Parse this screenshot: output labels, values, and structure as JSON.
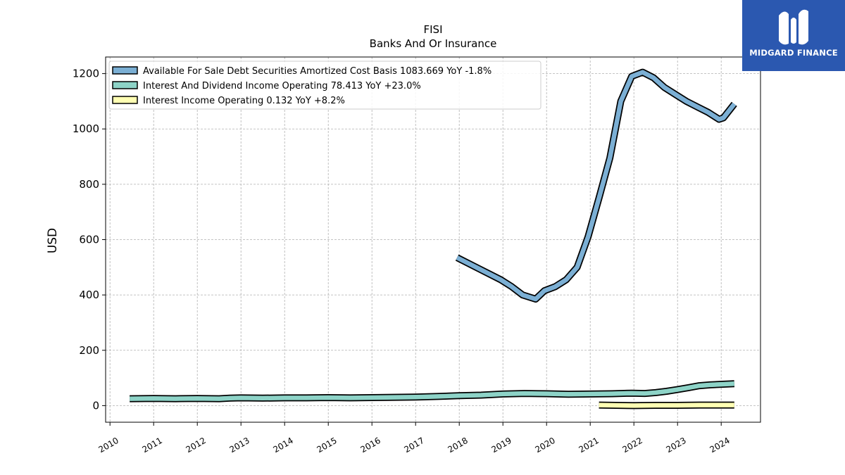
{
  "header": {
    "title": "FISI",
    "subtitle": "Banks And Or Insurance"
  },
  "logo": {
    "text": "MIDGARD FINANCE",
    "background": "#2b58b0"
  },
  "chart_data": {
    "type": "line",
    "title": "FISI",
    "subtitle": "Banks And Or Insurance",
    "xlabel": "",
    "ylabel": "USD",
    "xlim": [
      2009.9,
      2024.9
    ],
    "ylim": [
      -60,
      1260
    ],
    "x_ticks": [
      "2010",
      "2011",
      "2012",
      "2013",
      "2014",
      "2015",
      "2016",
      "2017",
      "2018",
      "2019",
      "2020",
      "2021",
      "2022",
      "2023",
      "2024"
    ],
    "y_ticks": [
      0,
      200,
      400,
      600,
      800,
      1000,
      1200
    ],
    "grid": true,
    "legend_position": "top-left",
    "series": [
      {
        "name": "Available For Sale Debt Securities Amortized Cost Basis  1083.669 YoY -1.8%",
        "color": "#7bafd4",
        "x": [
          2017.95,
          2018.45,
          2018.95,
          2019.2,
          2019.45,
          2019.75,
          2019.95,
          2020.2,
          2020.45,
          2020.7,
          2020.95,
          2021.2,
          2021.45,
          2021.7,
          2021.95,
          2022.2,
          2022.45,
          2022.7,
          2022.95,
          2023.2,
          2023.45,
          2023.7,
          2023.95,
          2024.05,
          2024.3
        ],
        "y": [
          535,
          495,
          455,
          430,
          400,
          385,
          415,
          430,
          455,
          500,
          610,
          750,
          895,
          1100,
          1190,
          1205,
          1185,
          1150,
          1125,
          1100,
          1080,
          1060,
          1035,
          1040,
          1090
        ]
      },
      {
        "name": "Interest And Dividend Income Operating  78.413 YoY +23.0%",
        "color": "#8dd3c7",
        "x": [
          2010.45,
          2011.0,
          2011.5,
          2012.0,
          2012.5,
          2012.75,
          2013.0,
          2013.5,
          2014.0,
          2014.5,
          2015.0,
          2015.5,
          2016.0,
          2016.5,
          2017.0,
          2017.5,
          2018.0,
          2018.5,
          2019.0,
          2019.5,
          2020.0,
          2020.5,
          2021.0,
          2021.5,
          2021.95,
          2022.25,
          2022.5,
          2022.75,
          2023.0,
          2023.25,
          2023.5,
          2023.75,
          2024.0,
          2024.3
        ],
        "y": [
          25,
          26,
          25,
          26,
          25,
          27,
          28,
          27,
          28,
          28,
          29,
          28,
          29,
          30,
          31,
          33,
          36,
          38,
          42,
          44,
          43,
          41,
          42,
          43,
          45,
          44,
          47,
          52,
          58,
          65,
          72,
          75,
          77,
          79
        ]
      },
      {
        "name": "Interest Income Operating  0.132 YoY +8.2%",
        "color": "#ffffb3",
        "x": [
          2021.2,
          2022.0,
          2022.5,
          2023.0,
          2023.5,
          2024.3
        ],
        "y": [
          2,
          0,
          1,
          1,
          2,
          2
        ]
      }
    ]
  }
}
